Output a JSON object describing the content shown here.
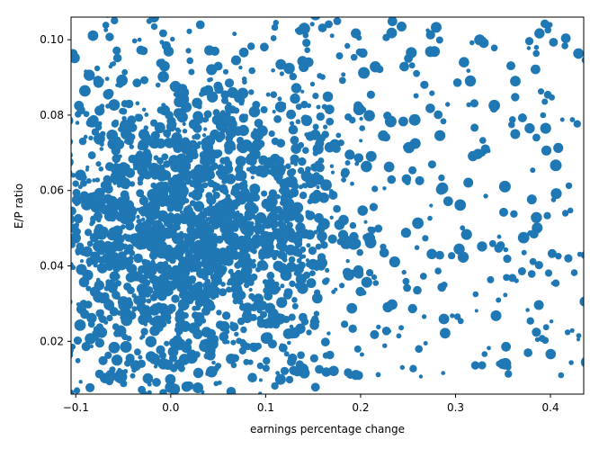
{
  "chart_data": {
    "type": "scatter",
    "title": "",
    "xlabel": "earnings percentage change",
    "ylabel": "E/P ratio",
    "xlim": [
      -0.105,
      0.435
    ],
    "ylim": [
      0.006,
      0.106
    ],
    "xticks": [
      -0.1,
      0.0,
      0.1,
      0.2,
      0.3,
      0.4
    ],
    "xtick_labels": [
      "−0.1",
      "0.0",
      "0.1",
      "0.2",
      "0.3",
      "0.4"
    ],
    "yticks": [
      0.02,
      0.04,
      0.06,
      0.08,
      0.1
    ],
    "ytick_labels": [
      "0.02",
      "0.04",
      "0.06",
      "0.08",
      "0.10"
    ],
    "grid": false,
    "marker_color": "#1f77b4",
    "point_count": 2400,
    "points_note": "dense cloud centered near x≈0.02, y≈0.05; sparser toward x>0.2",
    "sample_points": [
      {
        "x": -0.08,
        "y": 0.022
      },
      {
        "x": 0.0,
        "y": 0.05
      },
      {
        "x": 0.02,
        "y": 0.055
      },
      {
        "x": 0.05,
        "y": 0.045
      },
      {
        "x": 0.1,
        "y": 0.04
      },
      {
        "x": 0.2,
        "y": 0.035
      },
      {
        "x": 0.3,
        "y": 0.06
      },
      {
        "x": 0.42,
        "y": 0.045
      }
    ]
  }
}
